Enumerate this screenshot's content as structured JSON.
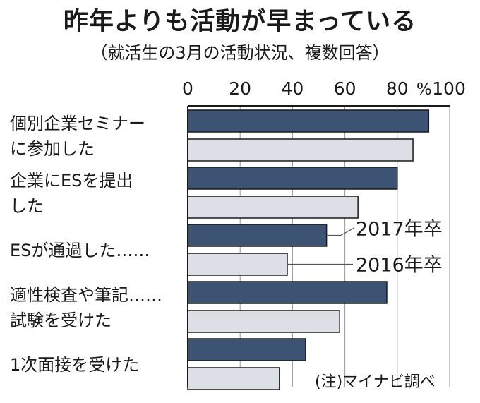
{
  "title": "昨年よりも活動が早まっている",
  "subtitle": "（就活生の3月の活動状況、複数回答）",
  "note": "(注)マイナビ調べ",
  "colors": {
    "series_2017": "#3d5373",
    "series_2016": "#dcdfe6",
    "outline": "#1a1a1a",
    "grid": "#999999"
  },
  "chart_data": {
    "type": "bar",
    "orientation": "horizontal",
    "unit": "%",
    "xlim": [
      0,
      100
    ],
    "ticks": [
      "0",
      "20",
      "40",
      "60",
      "80",
      "100"
    ],
    "categories": [
      [
        "個別企業セミナー",
        "に参加した"
      ],
      [
        "企業にESを提出",
        "した"
      ],
      [
        "ESが通過した……"
      ],
      [
        "適性検査や筆記……",
        "試験を受けた"
      ],
      [
        "1次面接を受けた"
      ]
    ],
    "series": [
      {
        "name": "2017年卒",
        "values": [
          92,
          80,
          53,
          76,
          45
        ]
      },
      {
        "name": "2016年卒",
        "values": [
          86,
          65,
          38,
          58,
          35
        ]
      }
    ],
    "legend_placement": "inline next to the ES bars"
  }
}
